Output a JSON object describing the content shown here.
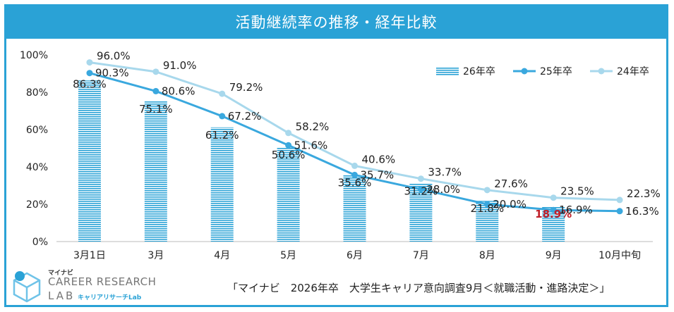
{
  "header": {
    "title": "活動継続率の推移・経年比較"
  },
  "chart_data": {
    "type": "bar",
    "categories": [
      "3月1日",
      "3月",
      "4月",
      "5月",
      "6月",
      "7月",
      "8月",
      "9月",
      "10月中旬"
    ],
    "series": [
      {
        "name": "26年卒",
        "kind": "bar",
        "values": [
          86.3,
          75.1,
          61.2,
          50.6,
          35.6,
          31.2,
          21.8,
          18.9,
          null
        ],
        "labels": [
          "86.3%",
          "75.1%",
          "61.2%",
          "50.6%",
          "35.6%",
          "31.2%",
          "21.8%",
          "18.9%",
          null
        ]
      },
      {
        "name": "25年卒",
        "kind": "line",
        "values": [
          90.3,
          80.6,
          67.2,
          51.6,
          35.7,
          28.0,
          20.0,
          16.9,
          16.3
        ],
        "labels": [
          "90.3%",
          "80.6%",
          "67.2%",
          "51.6%",
          "35.7%",
          "28.0%",
          "20.0%",
          "16.9%",
          "16.3%"
        ]
      },
      {
        "name": "24年卒",
        "kind": "line",
        "values": [
          96.0,
          91.0,
          79.2,
          58.2,
          40.6,
          33.7,
          27.6,
          23.5,
          22.3
        ],
        "labels": [
          "96.0%",
          "91.0%",
          "79.2%",
          "58.2%",
          "40.6%",
          "33.7%",
          "27.6%",
          "23.5%",
          "22.3%"
        ]
      }
    ],
    "yticks": [
      "0%",
      "20%",
      "40%",
      "60%",
      "80%",
      "100%"
    ],
    "ylim": [
      0,
      100
    ],
    "legend_position": "top-right",
    "highlight_label": "18.9%"
  },
  "colors": {
    "accent": "#2aa2d6",
    "bar": "#2aa2d6",
    "line_25": "#3aa8de",
    "line_24": "#a8d8ec",
    "highlight": "#c0202a"
  },
  "logo": {
    "brand": "マイナビ",
    "line1": "CAREER RESEARCH",
    "line2": "LAB",
    "sub": "キャリアリサーチLab"
  },
  "footer": {
    "source": "「マイナビ　2026年卒　大学生キャリア意向調査9月＜就職活動・進路決定＞」"
  }
}
